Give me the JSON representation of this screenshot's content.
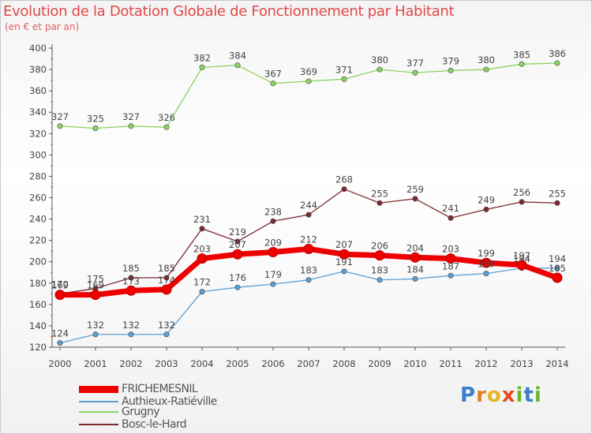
{
  "title": "Evolution de la Dotation Globale de Fonctionnement par Habitant",
  "subtitle": "(en € et par an)",
  "brand": "Proxiti",
  "chart_data": {
    "type": "line",
    "title": "Evolution de la Dotation Globale de Fonctionnement par Habitant",
    "ylabel": "(en € et par an)",
    "xlabel": "",
    "ylim": [
      120,
      400
    ],
    "yticks": [
      120,
      140,
      160,
      180,
      200,
      220,
      240,
      260,
      280,
      300,
      320,
      340,
      360,
      380,
      400
    ],
    "categories": [
      "2000",
      "2001",
      "2002",
      "2003",
      "2004",
      "2005",
      "2006",
      "2007",
      "2008",
      "2009",
      "2010",
      "2011",
      "2012",
      "2013",
      "2014"
    ],
    "series": [
      {
        "name": "FRICHEMESNIL",
        "color": "#ee0000",
        "values": [
          169,
          169,
          173,
          174,
          203,
          207,
          209,
          212,
          207,
          206,
          204,
          203,
          199,
          197,
          185
        ]
      },
      {
        "name": "Authieux-Ratiéville",
        "color": "#5a9fd4",
        "values": [
          124,
          132,
          132,
          132,
          172,
          176,
          179,
          183,
          191,
          183,
          184,
          187,
          189,
          194,
          194
        ]
      },
      {
        "name": "Grugny",
        "color": "#8cd460",
        "values": [
          327,
          325,
          327,
          326,
          382,
          384,
          367,
          369,
          371,
          380,
          377,
          379,
          380,
          385,
          386
        ]
      },
      {
        "name": "Bosc-le-Hard",
        "color": "#7a2a30",
        "values": [
          170,
          175,
          185,
          185,
          231,
          219,
          238,
          244,
          268,
          255,
          259,
          241,
          249,
          256,
          255
        ]
      }
    ],
    "grid": false,
    "legend": "bottom-left"
  }
}
